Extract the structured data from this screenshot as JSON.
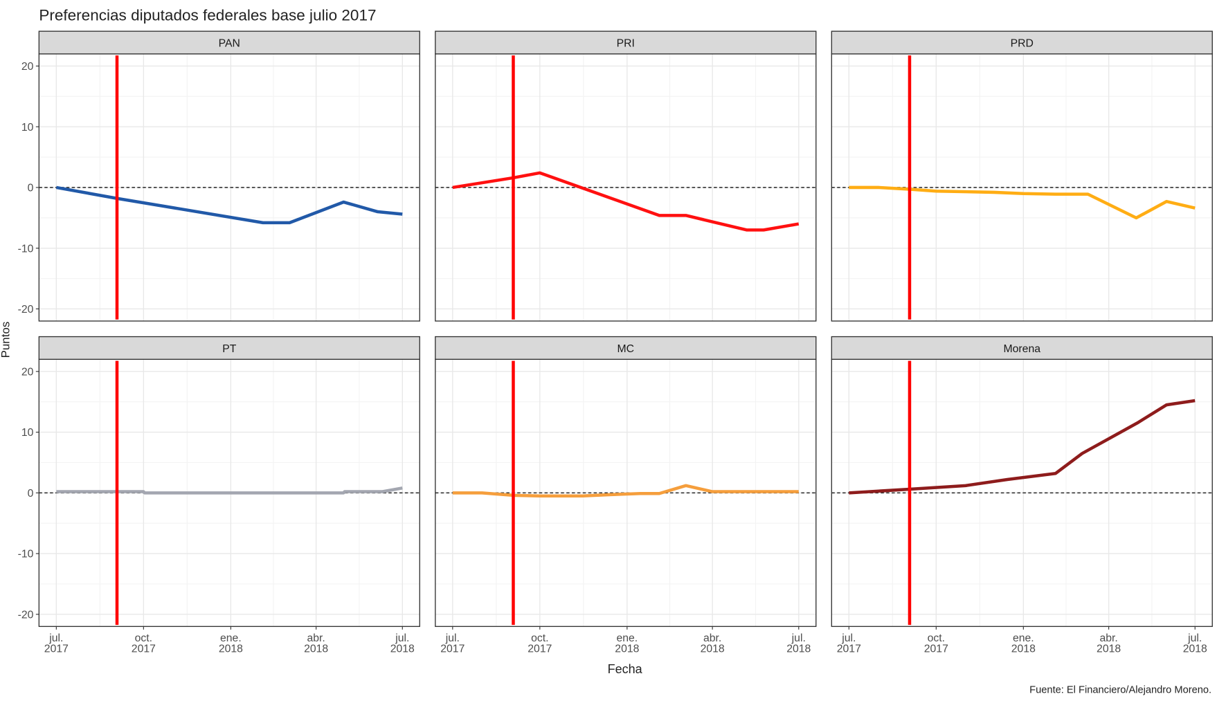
{
  "chart_data": {
    "type": "line",
    "title": "Preferencias diputados federales base julio 2017",
    "xlabel": "Fecha",
    "ylabel": "Puntos",
    "caption": "Fuente: El Financiero/Alejandro Moreno.",
    "ylim": [
      -22,
      22
    ],
    "y_ticks": [
      "20",
      "10",
      "0",
      "-10",
      "-20"
    ],
    "y_tick_values": [
      20,
      10,
      0,
      -10,
      -20
    ],
    "x_range": [
      "2017-07-01",
      "2018-07-01"
    ],
    "x_ticks": [
      {
        "date": "2017-07-01",
        "line1": "jul.",
        "line2": "2017"
      },
      {
        "date": "2017-10-01",
        "line1": "oct.",
        "line2": "2017"
      },
      {
        "date": "2018-01-01",
        "line1": "ene.",
        "line2": "2018"
      },
      {
        "date": "2018-04-01",
        "line1": "abr.",
        "line2": "2018"
      },
      {
        "date": "2018-07-01",
        "line1": "jul.",
        "line2": "2018"
      }
    ],
    "grid": true,
    "reference_hline": 0,
    "reference_vline": {
      "date": "2017-09-03",
      "color": "#ff0000"
    },
    "facets": [
      {
        "name": "PAN",
        "color": "#2159a8",
        "x": [
          "2017-07-01",
          "2017-09-03",
          "2018-02-04",
          "2018-03-04",
          "2018-04-30",
          "2018-06-05",
          "2018-07-01"
        ],
        "y": [
          0,
          -1.8,
          -5.8,
          -5.8,
          -2.4,
          -4.0,
          -4.4
        ]
      },
      {
        "name": "PRI",
        "color": "#ff1010",
        "x": [
          "2017-07-01",
          "2017-09-03",
          "2017-10-01",
          "2018-02-04",
          "2018-03-04",
          "2018-05-07",
          "2018-05-25",
          "2018-07-01"
        ],
        "y": [
          0,
          1.6,
          2.4,
          -4.6,
          -4.6,
          -7.0,
          -7.0,
          -6.0
        ]
      },
      {
        "name": "PRD",
        "color": "#ffad14",
        "x": [
          "2017-07-01",
          "2017-08-01",
          "2017-09-03",
          "2017-10-01",
          "2017-12-01",
          "2018-01-01",
          "2018-02-04",
          "2018-03-10",
          "2018-04-30",
          "2018-06-01",
          "2018-07-01"
        ],
        "y": [
          0,
          0,
          -0.3,
          -0.6,
          -0.8,
          -1.0,
          -1.1,
          -1.1,
          -5.0,
          -2.3,
          -3.4
        ]
      },
      {
        "name": "PT",
        "color": "#a3a6b0",
        "x": [
          "2017-07-01",
          "2017-10-01",
          "2017-10-02",
          "2018-04-30",
          "2018-05-01",
          "2018-06-10",
          "2018-07-01"
        ],
        "y": [
          0.2,
          0.2,
          0,
          0,
          0.2,
          0.2,
          0.8
        ]
      },
      {
        "name": "MC",
        "color": "#f59e3c",
        "x": [
          "2017-07-01",
          "2017-08-01",
          "2017-09-03",
          "2017-10-01",
          "2017-11-15",
          "2017-12-15",
          "2018-01-15",
          "2018-02-04",
          "2018-03-04",
          "2018-04-01",
          "2018-07-01"
        ],
        "y": [
          0,
          0,
          -0.4,
          -0.5,
          -0.5,
          -0.3,
          -0.1,
          -0.1,
          1.2,
          0.2,
          0.2
        ]
      },
      {
        "name": "Morena",
        "color": "#8e1c1c",
        "x": [
          "2017-07-01",
          "2017-09-03",
          "2017-11-01",
          "2017-12-15",
          "2018-02-04",
          "2018-03-04",
          "2018-05-01",
          "2018-06-01",
          "2018-07-01"
        ],
        "y": [
          0,
          0.6,
          1.2,
          2.2,
          3.2,
          6.5,
          11.5,
          14.5,
          15.2
        ]
      }
    ]
  }
}
